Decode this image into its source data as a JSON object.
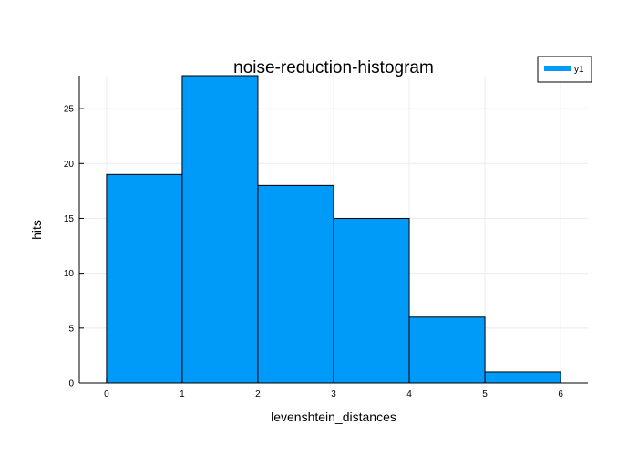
{
  "chart_data": {
    "type": "bar",
    "title": "noise-reduction-histogram",
    "xlabel": "levenshtein_distances",
    "ylabel": "hits",
    "bin_edges": [
      0,
      1,
      2,
      3,
      4,
      5,
      6
    ],
    "series": [
      {
        "name": "y1",
        "values": [
          19,
          28,
          18,
          15,
          6,
          1
        ]
      }
    ],
    "xticks": [
      "0",
      "1",
      "2",
      "3",
      "4",
      "5",
      "6"
    ],
    "yticks": [
      "0",
      "5",
      "10",
      "15",
      "20",
      "25"
    ],
    "xlim": [
      -0.36,
      6.36
    ],
    "ylim": [
      0,
      28
    ],
    "grid": true,
    "legend_position": "top-right",
    "bar_color": "#009af9",
    "bar_edge_color": "#000000",
    "grid_color": "#ececec"
  }
}
